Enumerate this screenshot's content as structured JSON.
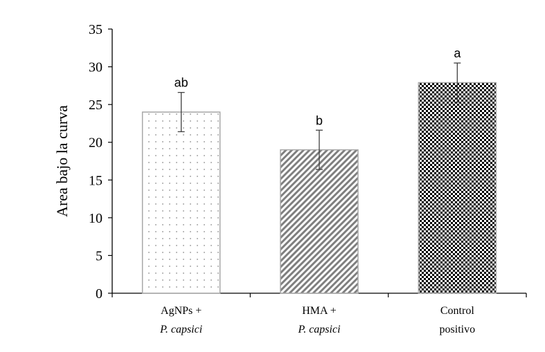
{
  "chart_data": {
    "type": "bar",
    "ylabel": "Area bajo la curva",
    "xlabel": "",
    "title": "",
    "ylim": [
      0,
      35
    ],
    "yticks": [
      0,
      5,
      10,
      15,
      20,
      25,
      30,
      35
    ],
    "grid": false,
    "categories": [
      {
        "line1": "AgNPs +",
        "line2": "P. capsici",
        "line2_italic": true
      },
      {
        "line1": "HMA +",
        "line2": "P. capsici",
        "line2_italic": true
      },
      {
        "line1": "Control",
        "line2": "positivo",
        "line2_italic": false
      }
    ],
    "values": [
      24,
      19,
      27.9
    ],
    "errors": [
      2.6,
      2.6,
      2.6
    ],
    "significance": [
      "ab",
      "b",
      "a"
    ],
    "patterns": [
      "dots",
      "diagonal",
      "checker"
    ],
    "colors": {
      "bar_edge": "#a6a6a6",
      "pattern_dark": "#7f7f7f",
      "checker": "#000000",
      "axis": "#000000",
      "error": "#404040"
    }
  }
}
